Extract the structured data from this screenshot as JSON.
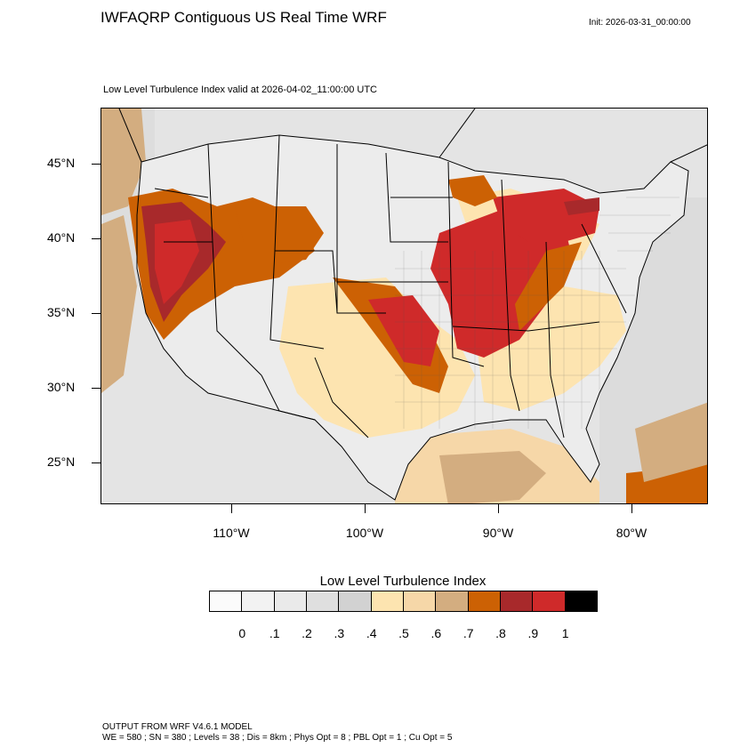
{
  "header": {
    "title": "IWFAQRP Contiguous US Real Time WRF",
    "init": "Init: 2026-03-31_00:00:00"
  },
  "map": {
    "subtitle": "Low Level Turbulence Index valid at 2026-04-02_11:00:00 UTC",
    "latitude_labels": [
      "45°N",
      "40°N",
      "35°N",
      "30°N",
      "25°N"
    ],
    "longitude_labels": [
      "110°W",
      "100°W",
      "90°W",
      "80°W"
    ]
  },
  "legend": {
    "title": "Low Level Turbulence Index",
    "levels": [
      "0",
      ".1",
      ".2",
      ".3",
      ".4",
      ".5",
      ".6",
      ".7",
      ".8",
      ".9",
      "1"
    ],
    "colors": [
      "#fbfbfb",
      "#f2f2f2",
      "#eaeaea",
      "#dfdfdf",
      "#d2d2d2",
      "#fde4b0",
      "#f6d7a8",
      "#d3ad80",
      "#cc6104",
      "#a8292b",
      "#cf2a2a",
      "#000000"
    ]
  },
  "footer": {
    "line1": "OUTPUT FROM WRF V4.6.1 MODEL",
    "line2": "WE = 580 ; SN = 380 ; Levels = 38 ; Dis = 8km ; Phys Opt = 8 ; PBL Opt = 1 ; Cu Opt = 5"
  }
}
